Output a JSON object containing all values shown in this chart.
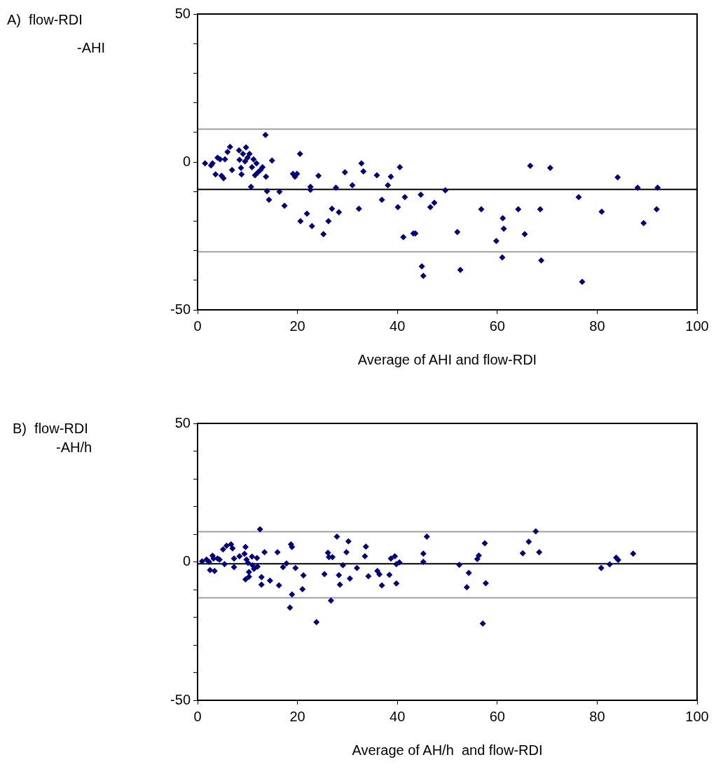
{
  "chart_data": [
    {
      "type": "scatter",
      "ylabel": "A)  flow-RDI\n-AHI",
      "xlabel": "Average of AHI and flow-RDI",
      "xlim": [
        0,
        100
      ],
      "xticks": [
        0,
        20,
        40,
        60,
        80,
        100
      ],
      "ylim": [
        -50,
        50
      ],
      "yticks": [
        -50,
        {
          "value": -40,
          "label": null
        },
        {
          "value": -30,
          "label": null
        },
        {
          "value": -20,
          "label": null
        },
        {
          "value": -10,
          "label": null
        },
        0,
        {
          "value": 10,
          "label": null
        },
        {
          "value": 20,
          "label": null
        },
        {
          "value": 30,
          "label": null
        },
        {
          "value": 40,
          "label": null
        },
        50
      ],
      "grid": false,
      "legend": false,
      "marker": "diamond",
      "ref_lines": [
        {
          "axis": "y",
          "value": 11.1,
          "color": "#a0a0a0"
        },
        {
          "axis": "y",
          "value": -9.3,
          "color": "#000000"
        },
        {
          "axis": "y",
          "value": -30.4,
          "color": "#a0a0a0"
        }
      ],
      "series": [
        {
          "color": "#000080",
          "x": [
            1.5,
            2.7,
            3,
            3.6,
            4,
            4.5,
            4.8,
            5.2,
            5.5,
            6,
            6.5,
            6.9,
            8.3,
            8.4,
            8.7,
            8.8,
            9.1,
            9.5,
            9.7,
            10,
            10.4,
            10.7,
            10.9,
            11.2,
            11.5,
            11.8,
            12.1,
            12.6,
            13,
            13.6,
            13.7,
            13.9,
            14.3,
            14.9,
            16.4,
            17.4,
            19.1,
            19.5,
            19.9,
            20.5,
            20.6,
            21.9,
            22.6,
            22.6,
            22.9,
            24.2,
            25.2,
            26.2,
            26.9,
            27.7,
            28.3,
            29.5,
            31,
            32.3,
            32.8,
            33.2,
            35.9,
            36.9,
            38.1,
            38.7,
            40.1,
            40.5,
            41.2,
            41.5,
            43.2,
            43.6,
            44.7,
            44.9,
            45.2,
            46.6,
            47.4,
            49.6,
            52,
            52.6,
            56.8,
            59.8,
            61.1,
            61.3,
            61,
            64.2,
            65.5,
            66.6,
            68.6,
            68.8,
            70.6,
            76.3,
            77,
            80.9,
            84.1,
            88.1,
            89.3,
            91.9,
            92.1
          ],
          "values": [
            -0.5,
            -1.2,
            -0.5,
            -4.2,
            1.4,
            0.9,
            -4.7,
            -5.5,
            0.9,
            3.4,
            5.1,
            -2.7,
            3.9,
            0.7,
            -2,
            -4.2,
            2.7,
            0.2,
            4.9,
            1.4,
            2.7,
            -8.4,
            -1.8,
            0.9,
            -4.5,
            -0.5,
            -3.5,
            -2.7,
            -1.8,
            9.1,
            -5,
            -9.9,
            -12.8,
            0.5,
            -10.1,
            -14.8,
            -4,
            -5,
            -4,
            2.7,
            -20,
            -17.5,
            -8.4,
            -9.4,
            -21.7,
            -4.7,
            -24.4,
            -20,
            -15.8,
            -8.7,
            -17,
            -3.5,
            -7.9,
            -15.8,
            -0.5,
            -3.2,
            -4.5,
            -12.8,
            -7.9,
            -5,
            -15.3,
            -1.8,
            -25.4,
            -11.9,
            -24.2,
            -24.2,
            -11.1,
            -35.3,
            -38.5,
            -15.3,
            -13.8,
            -9.6,
            -23.7,
            -36.5,
            -16,
            -26.7,
            -19,
            -22.6,
            -32.3,
            -16,
            -24.4,
            -1.3,
            -16,
            -33.3,
            -2,
            -11.9,
            -40.5,
            -16.8,
            -5.2,
            -8.7,
            -20.7,
            -16,
            -8.7
          ]
        }
      ]
    },
    {
      "type": "scatter",
      "ylabel": "B)  flow-RDI\n-AH/h",
      "xlabel": "Average of AH/h  and flow-RDI",
      "xlim": [
        0,
        100
      ],
      "xticks": [
        0,
        20,
        40,
        60,
        80,
        100
      ],
      "ylim": [
        -50,
        50
      ],
      "yticks": [
        -50,
        {
          "value": -40,
          "label": null
        },
        {
          "value": -30,
          "label": null
        },
        {
          "value": -20,
          "label": null
        },
        {
          "value": -10,
          "label": null
        },
        0,
        {
          "value": 10,
          "label": null
        },
        {
          "value": 20,
          "label": null
        },
        {
          "value": 30,
          "label": null
        },
        {
          "value": 40,
          "label": null
        },
        50
      ],
      "grid": false,
      "legend": false,
      "marker": "diamond",
      "ref_lines": [
        {
          "axis": "y",
          "value": 10.9,
          "color": "#a0a0a0"
        },
        {
          "axis": "y",
          "value": -0.7,
          "color": "#000000"
        },
        {
          "axis": "y",
          "value": -13,
          "color": "#a0a0a0"
        }
      ],
      "series": [
        {
          "color": "#000080",
          "x": [
            0.9,
            1.8,
            2.3,
            2.5,
            3,
            3.2,
            3.4,
            4,
            4.4,
            5.1,
            5.4,
            5.8,
            6.7,
            7,
            7.3,
            7.3,
            8.4,
            9.4,
            9.6,
            9.6,
            9.8,
            10.1,
            10.3,
            10.3,
            10.9,
            11,
            11.3,
            11.9,
            12,
            12.5,
            12.8,
            12.8,
            13.4,
            14.5,
            16,
            16.3,
            17.1,
            17.8,
            18.5,
            18.7,
            18.9,
            18.9,
            19.6,
            21,
            21.2,
            23.8,
            25.4,
            26.1,
            26.3,
            26.7,
            27,
            27.9,
            28.3,
            28.5,
            29.1,
            29.8,
            30.2,
            30.5,
            31.9,
            33.5,
            33.7,
            34.2,
            36,
            36.4,
            36.9,
            38.4,
            38.7,
            39.5,
            39.8,
            39.8,
            40.4,
            45.2,
            45.2,
            45.9,
            52.4,
            54.3,
            53.9,
            56,
            56.3,
            57.5,
            57.7,
            57.1,
            65.1,
            66.3,
            67.7,
            68.4,
            80.8,
            82.5,
            83.8,
            84.2,
            87.2
          ],
          "values": [
            0.2,
            0.8,
            0,
            -3,
            2.2,
            1.2,
            -3.3,
            1.2,
            0.8,
            4.5,
            -0.8,
            5.8,
            6.3,
            4.9,
            1.2,
            -1.9,
            2,
            2.9,
            5.4,
            -6.3,
            0.8,
            -0.4,
            -5.4,
            -3.7,
            1.9,
            -1.2,
            -2.5,
            1.4,
            -1.7,
            11.8,
            -5.5,
            -8.2,
            3.5,
            -6.8,
            3.5,
            -8.5,
            -1.9,
            -0.6,
            -16.5,
            6.3,
            5.4,
            -11.8,
            -2.2,
            -9.9,
            -4.9,
            -21.8,
            -4.4,
            3.3,
            1.7,
            -14,
            1.7,
            9.1,
            -4.8,
            -8.2,
            -1.2,
            3.5,
            7.4,
            -6,
            -2.2,
            2,
            5.5,
            -5.2,
            -3.3,
            -4.5,
            -8.5,
            -4.7,
            1.2,
            2,
            -0.8,
            -7.8,
            -0.2,
            0,
            3,
            9.1,
            -1.1,
            -4,
            -9.2,
            1,
            2.3,
            6.7,
            -7.7,
            -22.3,
            3.1,
            7.3,
            11,
            3.5,
            -2.2,
            -0.9,
            1.5,
            0.7,
            3
          ]
        }
      ]
    }
  ]
}
